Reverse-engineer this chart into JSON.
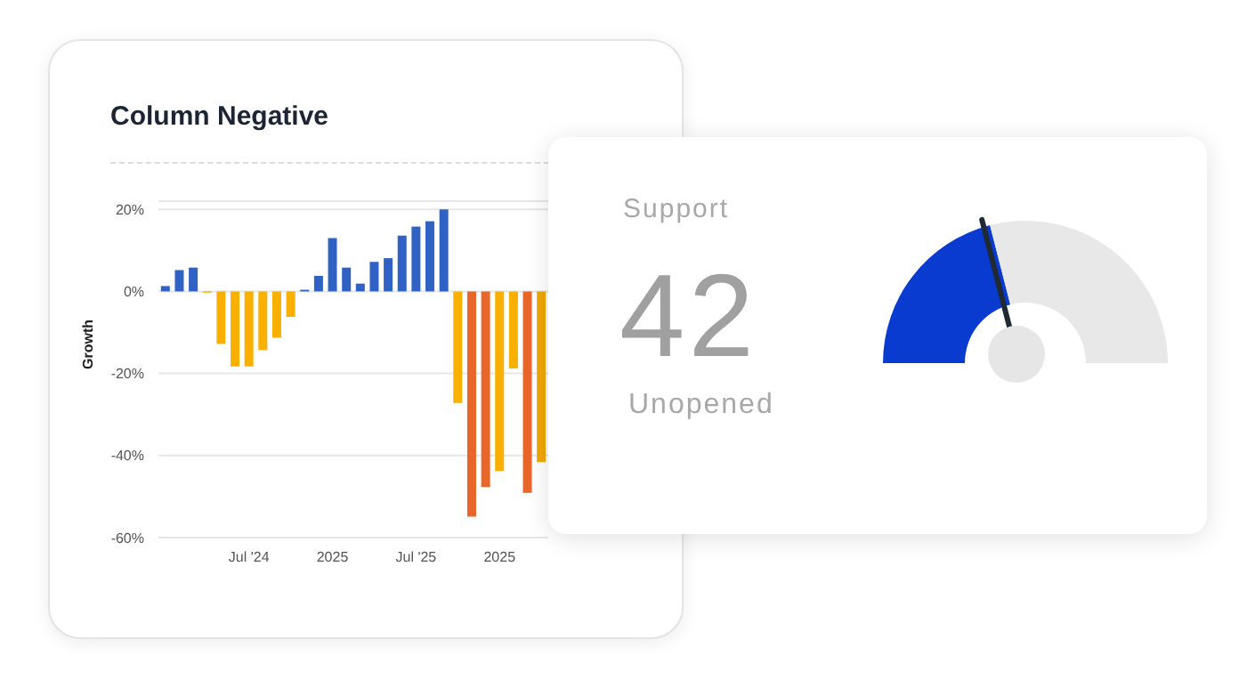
{
  "chart_data": [
    {
      "type": "bar",
      "title": "Column Negative",
      "ylabel": "Growth",
      "categories": [
        null,
        null,
        null,
        null,
        null,
        null,
        "Jul '24",
        null,
        null,
        null,
        null,
        null,
        "2025",
        null,
        null,
        null,
        null,
        null,
        "Jul '25",
        null,
        null,
        null,
        null,
        null,
        "2025",
        null,
        null,
        null
      ],
      "values": [
        1.3,
        5.2,
        5.8,
        -0.3,
        -12.8,
        -18.3,
        -18.3,
        -14.3,
        -11.3,
        -6.2,
        0.4,
        3.8,
        13,
        5.8,
        1.9,
        7.2,
        8.1,
        13.6,
        15.8,
        17.1,
        20,
        -27.2,
        -54.9,
        -47.7,
        -43.8,
        -18.8,
        -49.1,
        -41.6
      ],
      "colors": [
        "#2f62c4",
        "#2f62c4",
        "#2f62c4",
        "#f9b000",
        "#f9b000",
        "#f9b000",
        "#f9b000",
        "#f9b000",
        "#f9b000",
        "#f9b000",
        "#2f62c4",
        "#2f62c4",
        "#2f62c4",
        "#2f62c4",
        "#2f62c4",
        "#2f62c4",
        "#2f62c4",
        "#2f62c4",
        "#2f62c4",
        "#2f62c4",
        "#2f62c4",
        "#f9b000",
        "#e8662a",
        "#e8662a",
        "#f9b000",
        "#f9b000",
        "#e8662a",
        "#f0a800"
      ],
      "ylim": [
        -60,
        22
      ],
      "yticks": [
        {
          "value": 20,
          "label": "20%"
        },
        {
          "value": 0,
          "label": "0%"
        },
        {
          "value": -20,
          "label": "-20%"
        },
        {
          "value": -40,
          "label": "-40%"
        },
        {
          "value": -60,
          "label": "-60%"
        }
      ],
      "grid": "y",
      "legend": false
    },
    {
      "type": "donut",
      "title": "Support",
      "annotations": [
        "Unopened"
      ],
      "categories": [
        null,
        null
      ],
      "values": [
        42,
        58
      ],
      "colors": [
        "#0a3bd1",
        "#e8e8e8"
      ],
      "value_labels": [
        "42",
        null
      ]
    }
  ]
}
